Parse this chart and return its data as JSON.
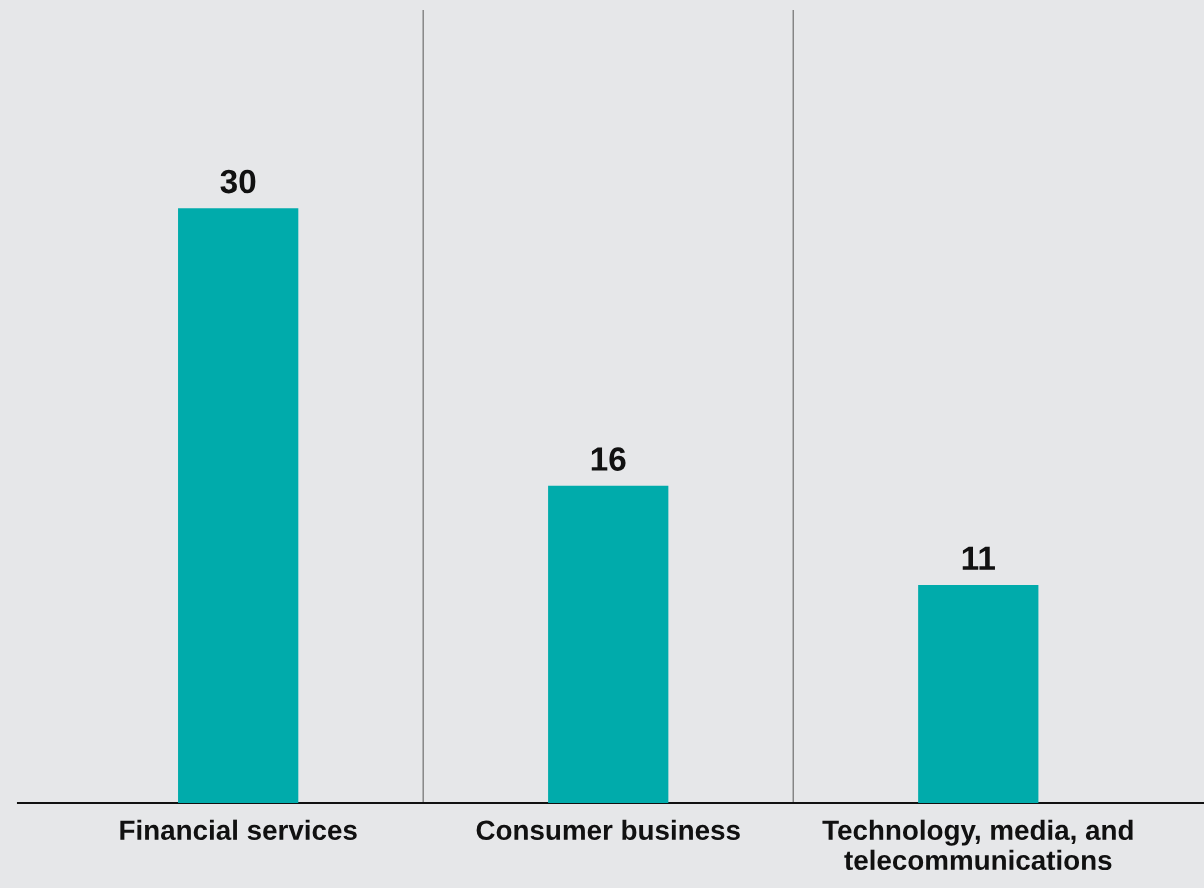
{
  "chart_data": {
    "type": "bar",
    "categories": [
      "Financial services",
      "Consumer business",
      "Technology, media, and\ntelecommunications"
    ],
    "values": [
      30,
      16,
      11
    ],
    "color": "#00abab",
    "data_labels": true,
    "ylim": [
      0,
      40
    ],
    "tick_labels": "x",
    "grid": false,
    "legend": false
  }
}
